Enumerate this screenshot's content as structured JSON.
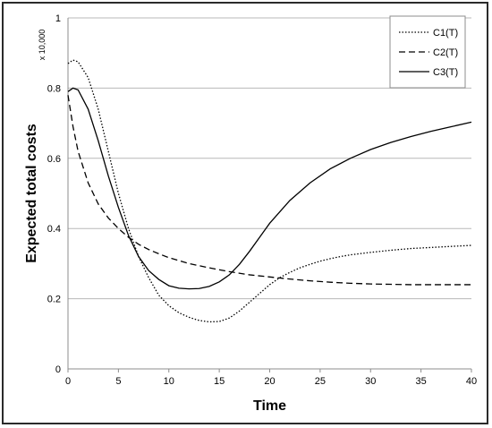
{
  "chart_data": {
    "type": "line",
    "title": "",
    "xlabel": "Time",
    "ylabel": "Expected total costs",
    "y_multiplier": "x 10,000",
    "xlim": [
      0,
      40
    ],
    "ylim": [
      0,
      1
    ],
    "x_ticks": [
      0,
      5,
      10,
      15,
      20,
      25,
      30,
      35,
      40
    ],
    "y_ticks": [
      0,
      0.2,
      0.4,
      0.6,
      0.8,
      1
    ],
    "y_tick_labels": [
      "0",
      "0.2",
      "0.4",
      "0.6",
      "0.8",
      "1"
    ],
    "grid": "horizontal",
    "legend_position": "top-right",
    "series": [
      {
        "name": "C1(T)",
        "style": "dotted",
        "color": "#000000",
        "x": [
          0,
          0.5,
          1,
          2,
          3,
          4,
          5,
          6,
          7,
          8,
          9,
          10,
          11,
          12,
          13,
          14,
          15,
          16,
          17,
          18,
          19,
          20,
          21,
          22,
          23,
          24,
          25,
          26,
          27,
          28,
          30,
          32,
          34,
          36,
          38,
          40
        ],
        "y": [
          0.87,
          0.88,
          0.875,
          0.83,
          0.74,
          0.62,
          0.5,
          0.4,
          0.32,
          0.26,
          0.21,
          0.18,
          0.16,
          0.147,
          0.138,
          0.134,
          0.135,
          0.145,
          0.165,
          0.19,
          0.215,
          0.24,
          0.26,
          0.275,
          0.288,
          0.298,
          0.307,
          0.314,
          0.32,
          0.325,
          0.332,
          0.338,
          0.343,
          0.346,
          0.349,
          0.352
        ]
      },
      {
        "name": "C2(T)",
        "style": "dashed",
        "color": "#000000",
        "x": [
          0,
          0.5,
          1,
          2,
          3,
          4,
          5,
          6,
          7,
          8,
          9,
          10,
          12,
          14,
          16,
          18,
          20,
          22,
          24,
          26,
          28,
          30,
          32,
          34,
          36,
          38,
          40
        ],
        "y": [
          0.78,
          0.69,
          0.62,
          0.53,
          0.47,
          0.43,
          0.4,
          0.375,
          0.355,
          0.34,
          0.328,
          0.317,
          0.3,
          0.288,
          0.277,
          0.268,
          0.262,
          0.256,
          0.251,
          0.247,
          0.244,
          0.242,
          0.241,
          0.24,
          0.24,
          0.24,
          0.24
        ]
      },
      {
        "name": "C3(T)",
        "style": "solid",
        "color": "#000000",
        "x": [
          0,
          0.5,
          1,
          2,
          3,
          4,
          5,
          6,
          7,
          8,
          9,
          10,
          11,
          12,
          13,
          14,
          15,
          16,
          17,
          18,
          19,
          20,
          22,
          24,
          26,
          28,
          30,
          32,
          34,
          36,
          38,
          40
        ],
        "y": [
          0.79,
          0.8,
          0.795,
          0.74,
          0.65,
          0.55,
          0.46,
          0.38,
          0.32,
          0.28,
          0.255,
          0.237,
          0.23,
          0.228,
          0.229,
          0.235,
          0.248,
          0.268,
          0.298,
          0.335,
          0.375,
          0.415,
          0.48,
          0.53,
          0.57,
          0.6,
          0.625,
          0.645,
          0.662,
          0.677,
          0.69,
          0.703
        ]
      }
    ]
  }
}
